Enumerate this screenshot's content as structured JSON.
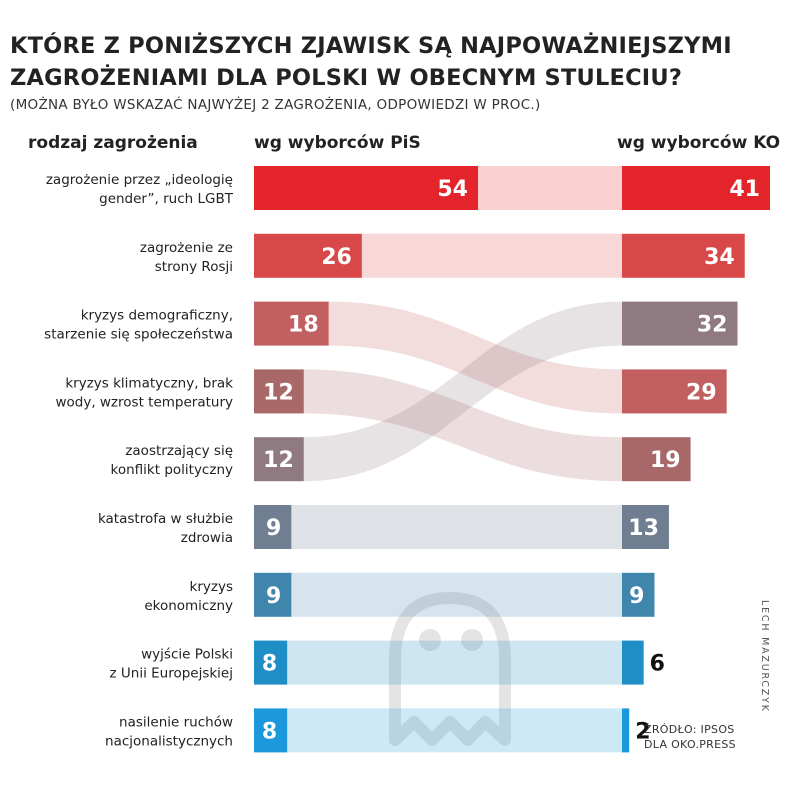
{
  "title_line1": "Które z poniższych zjawisk są najpoważniejszymi",
  "title_line2": "zagrożeniami dla Polski w obecnym stuleciu?",
  "subtitle": "(Można było wskazać najwyżej 2 zagrożenia, odpowiedzi w proc.)",
  "credit": "LECH MAZURCZYK",
  "source_line1": "ŹRÓDŁO: IPSOS",
  "source_line2": "DLA OKO.PRESS",
  "chart_data": {
    "type": "bar",
    "title": "Które z poniższych zjawisk są najpoważniejszymi zagrożeniami dla Polski w obecnym stuleciu?",
    "subtitle": "(Można było wskazać najwyżej 2 zagrożenia, odpowiedzi w proc.)",
    "category_header": "rodzaj zagrożenia",
    "left_header": "wg wyborców PiS",
    "right_header": "wg wyborców KO",
    "categories": [
      [
        "zagrożenie przez „ideologię",
        "gender”, ruch LGBT"
      ],
      [
        "zagrożenie ze",
        "strony Rosji"
      ],
      [
        "kryzys demograficzny,",
        "starzenie się społeczeństwa"
      ],
      [
        "kryzys klimatyczny, brak",
        "wody, wzrost temperatury"
      ],
      [
        "zaostrzający się",
        "konflikt polityczny"
      ],
      [
        "katastrofa w służbie",
        "zdrowia"
      ],
      [
        "kryzys",
        "ekonomiczny"
      ],
      [
        "wyjście Polski",
        "z Unii Europejskiej"
      ],
      [
        "nasilenie ruchów",
        "nacjonalistycznych"
      ]
    ],
    "series": [
      {
        "name": "wg wyborców PiS",
        "values": [
          54,
          26,
          18,
          12,
          12,
          9,
          9,
          8,
          8
        ]
      },
      {
        "name": "wg wyborców KO",
        "values": [
          41,
          34,
          32,
          29,
          19,
          13,
          9,
          6,
          2
        ]
      }
    ],
    "right_order": [
      0,
      1,
      3,
      4,
      2,
      5,
      6,
      7,
      8
    ],
    "colors": [
      "#e3242b",
      "#d94848",
      "#c25f60",
      "#a86868",
      "#907a82",
      "#6f7f91",
      "#3f85ac",
      "#1f8dc6",
      "#1b99dc"
    ]
  }
}
